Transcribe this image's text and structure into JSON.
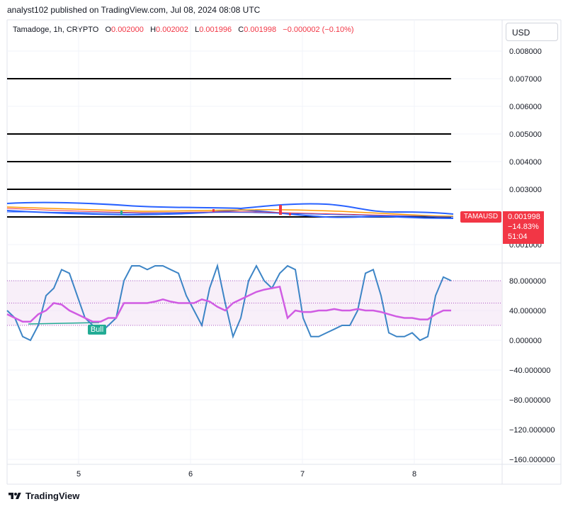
{
  "header": {
    "text": "analyst102 published on TradingView.com, Jul 08, 2024 08:08 UTC"
  },
  "symbol_line": {
    "symbol": "Tamadoge, 1h, CRYPTO",
    "open_label": "O",
    "open": "0.002000",
    "high_label": "H",
    "high": "0.002002",
    "low_label": "L",
    "low": "0.001996",
    "close_label": "C",
    "close": "0.001998",
    "change": "−0.000002 (−0.10%)"
  },
  "currency_button": {
    "label": "USD"
  },
  "price_scale": {
    "labels": [
      "0.008000",
      "0.007000",
      "0.006000",
      "0.005000",
      "0.004000",
      "0.003000",
      "0.001000"
    ]
  },
  "price_tag": {
    "symbol": "TAMAUSD",
    "price": "0.001998",
    "change_pct": "−14.83%",
    "countdown": "51:04"
  },
  "indicator_scale": {
    "labels": [
      "80.000000",
      "40.000000",
      "0.000000",
      "−40.000000",
      "−80.000000",
      "−120.000000",
      "−160.000000"
    ]
  },
  "bull_label": "Bull",
  "time_axis": {
    "labels": [
      "5",
      "6",
      "7",
      "8"
    ]
  },
  "footer": {
    "brand": "TradingView"
  },
  "colors": {
    "bollinger": "#2962ff",
    "ma_orange": "#ff9800",
    "rsi": "#d05ce3",
    "stoch": "#3d85c6",
    "down": "#f23645",
    "up": "#22ab94",
    "horizontal_lines": "#000000"
  },
  "chart_data": {
    "type": "line",
    "price_pane": {
      "horizontal_levels": [
        0.007,
        0.005,
        0.004,
        0.003,
        0.002
      ],
      "ylim": [
        0.0008,
        0.0085
      ],
      "last_close": 0.001998
    },
    "indicator_pane": {
      "ylim": [
        -165,
        105
      ],
      "band": [
        20,
        80
      ],
      "series": [
        {
          "values": [
            40,
            30,
            5,
            0,
            20,
            60,
            70,
            95,
            90,
            60,
            30,
            20,
            10,
            20,
            30,
            80,
            100,
            100,
            95,
            100,
            100,
            95,
            90,
            60,
            40,
            20,
            70,
            100,
            50,
            5,
            30,
            80,
            100,
            80,
            70,
            90,
            100,
            95,
            30,
            5,
            5,
            10,
            15,
            20,
            20,
            40,
            90,
            95,
            60,
            10,
            5,
            5,
            10,
            0,
            5,
            60,
            85,
            80
          ]
        },
        {
          "values": [
            35,
            30,
            25,
            25,
            35,
            40,
            50,
            48,
            40,
            35,
            30,
            25,
            25,
            30,
            30,
            50,
            50,
            50,
            50,
            52,
            55,
            52,
            50,
            50,
            50,
            55,
            52,
            45,
            40,
            50,
            55,
            60,
            65,
            68,
            70,
            72,
            30,
            40,
            38,
            38,
            40,
            40,
            42,
            40,
            40,
            42,
            40,
            40,
            38,
            35,
            32,
            30,
            30,
            28,
            28,
            35,
            40,
            40
          ]
        }
      ]
    }
  }
}
